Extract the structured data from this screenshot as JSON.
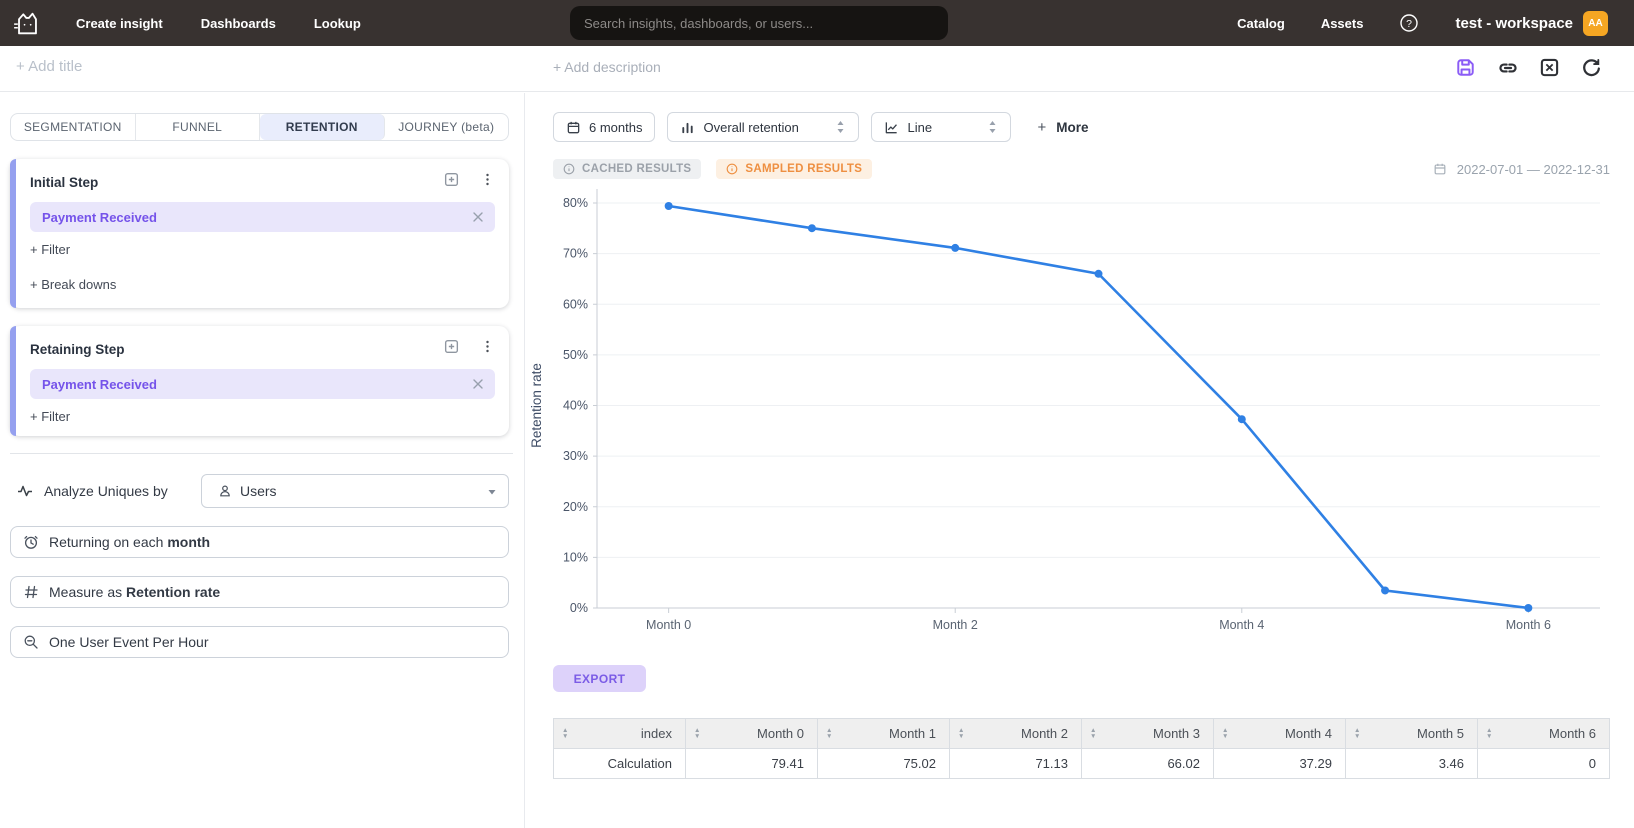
{
  "topbar": {
    "nav": [
      {
        "label": "Create insight"
      },
      {
        "label": "Dashboards"
      },
      {
        "label": "Lookup"
      }
    ],
    "search_placeholder": "Search insights, dashboards, or users...",
    "right_nav": [
      {
        "label": "Catalog"
      },
      {
        "label": "Assets"
      }
    ],
    "workspace": "test - workspace",
    "avatar_initials": "AA"
  },
  "subheader": {
    "add_title": "+ Add title",
    "add_description": "+ Add description"
  },
  "sidebar": {
    "tabs": [
      {
        "label": "SEGMENTATION",
        "active": false
      },
      {
        "label": "FUNNEL",
        "active": false
      },
      {
        "label": "RETENTION",
        "active": true
      },
      {
        "label": "JOURNEY (beta)",
        "active": false
      }
    ],
    "initial_step": {
      "title": "Initial Step",
      "event": "Payment Received",
      "filter_label": "+ Filter",
      "breakdown_label": "+ Break downs"
    },
    "retaining_step": {
      "title": "Retaining Step",
      "event": "Payment Received",
      "filter_label": "+ Filter"
    },
    "analyze": {
      "label": "Analyze Uniques by",
      "value": "Users"
    },
    "returning": {
      "prefix": "Returning on each ",
      "bold": "month"
    },
    "measure": {
      "prefix": "Measure as ",
      "bold": "Retention rate"
    },
    "dedupe": {
      "label": "One User Event Per Hour"
    }
  },
  "toolbar": {
    "date_button": "6 months",
    "metric_select": "Overall retention",
    "chart_type_select": "Line",
    "more_plus": "+",
    "more_label": "More"
  },
  "status": {
    "cached": "CACHED RESULTS",
    "sampled": "SAMPLED RESULTS",
    "date_range": "2022-07-01 — 2022-12-31"
  },
  "chart_data": {
    "type": "line",
    "title": "",
    "x": [
      "Month 0",
      "Month 1",
      "Month 2",
      "Month 3",
      "Month 4",
      "Month 5",
      "Month 6"
    ],
    "x_ticks_shown": [
      "Month 0",
      "Month 2",
      "Month 4",
      "Month 6"
    ],
    "series": [
      {
        "name": "Calculation",
        "values": [
          79.41,
          75.02,
          71.13,
          66.02,
          37.29,
          3.46,
          0
        ]
      }
    ],
    "xlabel": "",
    "ylabel": "Retention rate",
    "ylim": [
      0,
      80
    ],
    "y_tick_step": 10,
    "y_tick_suffix": "%",
    "grid": true,
    "legend": "none",
    "line_color": "#2f80e4"
  },
  "export_label": "EXPORT",
  "table": {
    "columns": [
      "index",
      "Month 0",
      "Month 1",
      "Month 2",
      "Month 3",
      "Month 4",
      "Month 5",
      "Month 6"
    ],
    "rows": [
      [
        "Calculation",
        "79.41",
        "75.02",
        "71.13",
        "66.02",
        "37.29",
        "3.46",
        "0"
      ]
    ]
  },
  "icons": {
    "logo": "cat-logo",
    "save": "floppy-disk",
    "share": "link-chain",
    "close": "x-square",
    "refresh": "circular-arrow",
    "help": "question-circle",
    "info": "info-circle",
    "calendar": "calendar",
    "users": "person",
    "analyze": "pulse-wave",
    "returning": "clock",
    "measure": "hash",
    "dedupe": "magnifier-minus"
  },
  "colors": {
    "topbar_bg": "#383230",
    "accent_purple": "#8b5cf6",
    "chip_bg": "#e9e6fb",
    "chip_text": "#7553ea",
    "step_accent": "#95a0ef",
    "active_tab_bg": "#e9edfc",
    "line_blue": "#2f80e4",
    "sampled_orange": "#ee8f41",
    "cached_gray": "#9ba1a9",
    "avatar_bg": "#F5A623",
    "export_bg": "#ddd2fa",
    "export_text": "#7b5ce6"
  }
}
